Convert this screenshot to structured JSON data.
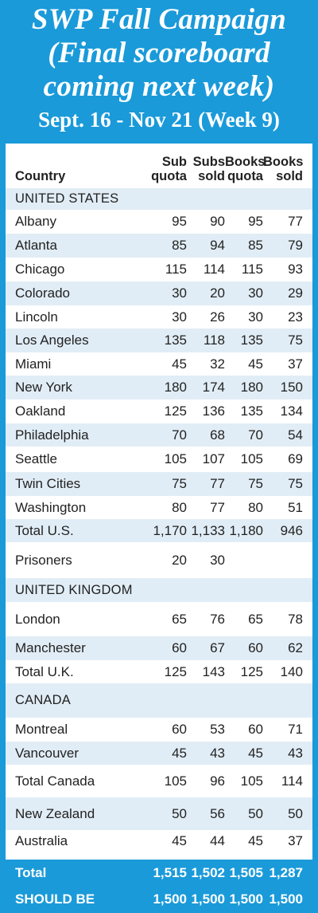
{
  "header": {
    "title_line1": "SWP Fall Campaign",
    "title_line2": "(Final scoreboard",
    "title_line3": "coming next week)",
    "dates": "Sept. 16 - Nov 21 (Week 9)"
  },
  "colors": {
    "accent": "#1a9ad9",
    "shade": "#e1edf6"
  },
  "columns": {
    "country": "Country",
    "sub_quota_1": "Sub",
    "sub_quota_2": "quota",
    "subs_sold_1": "Subs",
    "subs_sold_2": "sold",
    "books_quota_1": "Books",
    "books_quota_2": "quota",
    "books_sold_1": "Books",
    "books_sold_2": "sold"
  },
  "rows": [
    {
      "type": "section",
      "name": "UNITED STATES",
      "values": [
        "",
        "",
        "",
        ""
      ]
    },
    {
      "type": "data",
      "name": "Albany",
      "values": [
        "95",
        "90",
        "95",
        "77"
      ]
    },
    {
      "type": "data",
      "name": "Atlanta",
      "values": [
        "85",
        "94",
        "85",
        "79"
      ]
    },
    {
      "type": "data",
      "name": "Chicago",
      "values": [
        "115",
        "114",
        "115",
        "93"
      ]
    },
    {
      "type": "data",
      "name": "Colorado",
      "values": [
        "30",
        "20",
        "30",
        "29"
      ]
    },
    {
      "type": "data",
      "name": "Lincoln",
      "values": [
        "30",
        "26",
        "30",
        "23"
      ]
    },
    {
      "type": "data",
      "name": "Los Angeles",
      "values": [
        "135",
        "118",
        "135",
        "75"
      ]
    },
    {
      "type": "data",
      "name": "Miami",
      "values": [
        "45",
        "32",
        "45",
        "37"
      ]
    },
    {
      "type": "data",
      "name": "New York",
      "values": [
        "180",
        "174",
        "180",
        "150"
      ]
    },
    {
      "type": "data",
      "name": "Oakland",
      "values": [
        "125",
        "136",
        "135",
        "134"
      ]
    },
    {
      "type": "data",
      "name": "Philadelphia",
      "values": [
        "70",
        "68",
        "70",
        "54"
      ]
    },
    {
      "type": "data",
      "name": "Seattle",
      "values": [
        "105",
        "107",
        "105",
        "69"
      ]
    },
    {
      "type": "data",
      "name": "Twin Cities",
      "values": [
        "75",
        "77",
        "75",
        "75"
      ]
    },
    {
      "type": "data",
      "name": "Washington",
      "values": [
        "80",
        "77",
        "80",
        "51"
      ]
    },
    {
      "type": "total",
      "name": "Total U.S.",
      "values": [
        "1,170",
        "1,133",
        "1,180",
        "946"
      ]
    },
    {
      "type": "data",
      "name": "Prisoners",
      "values": [
        "20",
        "30",
        "",
        ""
      ]
    },
    {
      "type": "section",
      "name": "UNITED KINGDOM",
      "values": [
        "",
        "",
        "",
        ""
      ]
    },
    {
      "type": "data",
      "name": "London",
      "values": [
        "65",
        "76",
        "65",
        "78"
      ]
    },
    {
      "type": "data",
      "name": "Manchester",
      "values": [
        "60",
        "67",
        "60",
        "62"
      ]
    },
    {
      "type": "total",
      "name": "Total U.K.",
      "values": [
        "125",
        "143",
        "125",
        "140"
      ]
    },
    {
      "type": "section",
      "name": "CANADA",
      "values": [
        "",
        "",
        "",
        ""
      ]
    },
    {
      "type": "data",
      "name": "Montreal",
      "values": [
        "60",
        "53",
        "60",
        "71"
      ]
    },
    {
      "type": "data",
      "name": "Vancouver",
      "values": [
        "45",
        "43",
        "45",
        "43"
      ]
    },
    {
      "type": "total",
      "name": "Total Canada",
      "values": [
        "105",
        "96",
        "105",
        "114"
      ]
    },
    {
      "type": "data",
      "name": "New Zealand",
      "values": [
        "50",
        "56",
        "50",
        "50"
      ]
    },
    {
      "type": "data",
      "name": "Australia",
      "values": [
        "45",
        "44",
        "45",
        "37"
      ]
    }
  ],
  "footer": {
    "total": {
      "name": "Total",
      "values": [
        "1,515",
        "1,502",
        "1,505",
        "1,287"
      ]
    },
    "should_be": {
      "name": "SHOULD BE",
      "values": [
        "1,500",
        "1,500",
        "1,500",
        "1,500"
      ]
    }
  }
}
